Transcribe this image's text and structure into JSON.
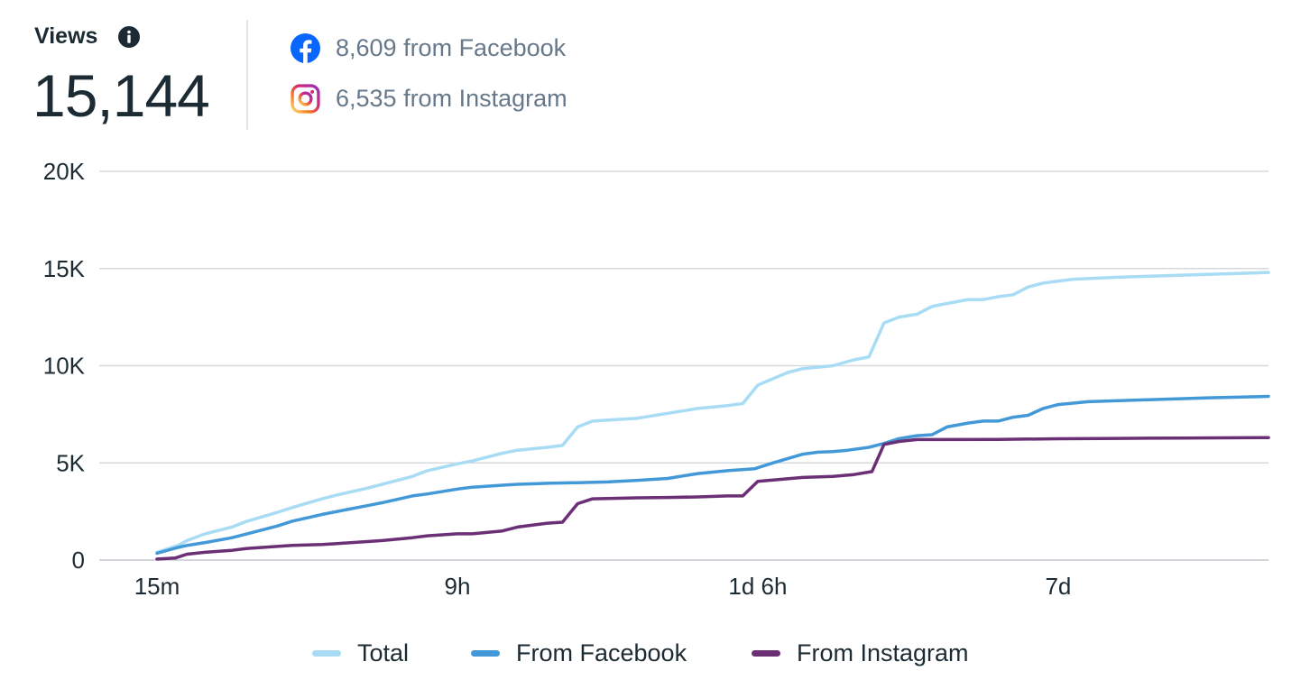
{
  "header": {
    "title": "Views",
    "total": "15,144",
    "sources": [
      {
        "icon": "facebook-logo-icon",
        "text": "8,609 from Facebook",
        "color": "#0866ff"
      },
      {
        "icon": "instagram-logo-icon",
        "text": "6,535 from Instagram",
        "color": "#d62976"
      }
    ]
  },
  "colors": {
    "total": "#a8dcf5",
    "facebook": "#4399d8",
    "instagram": "#6b2f76",
    "grid": "#d5d9de",
    "text": "#1c2b33",
    "muted": "#67788a"
  },
  "chart_data": {
    "type": "line",
    "title": "",
    "xlabel": "",
    "ylabel": "",
    "x_ticks": [
      {
        "label": "15m",
        "x": 0
      },
      {
        "label": "9h",
        "x": 10
      },
      {
        "label": "1d 6h",
        "x": 20
      },
      {
        "label": "7d",
        "x": 30
      }
    ],
    "x_range": [
      0,
      37
    ],
    "y_ticks": [
      {
        "label": "0",
        "value": 0
      },
      {
        "label": "5K",
        "value": 5000
      },
      {
        "label": "10K",
        "value": 10000
      },
      {
        "label": "15K",
        "value": 15000
      },
      {
        "label": "20K",
        "value": 20000
      }
    ],
    "ylim": [
      0,
      20000
    ],
    "grid": true,
    "legend_position": "bottom",
    "series": [
      {
        "name": "Total",
        "color": "#a8dcf5",
        "points": [
          [
            0,
            400
          ],
          [
            0.7,
            750
          ],
          [
            1,
            1000
          ],
          [
            1.6,
            1350
          ],
          [
            2.5,
            1700
          ],
          [
            3,
            2000
          ],
          [
            4,
            2450
          ],
          [
            4.5,
            2700
          ],
          [
            5.5,
            3150
          ],
          [
            6,
            3350
          ],
          [
            7,
            3700
          ],
          [
            7.5,
            3900
          ],
          [
            8.5,
            4300
          ],
          [
            9,
            4600
          ],
          [
            10,
            4950
          ],
          [
            10.5,
            5100
          ],
          [
            11.5,
            5500
          ],
          [
            12,
            5650
          ],
          [
            13,
            5800
          ],
          [
            13.5,
            5900
          ],
          [
            14,
            6850
          ],
          [
            14.5,
            7150
          ],
          [
            16,
            7300
          ],
          [
            17,
            7550
          ],
          [
            18,
            7800
          ],
          [
            19,
            7950
          ],
          [
            19.5,
            8050
          ],
          [
            20,
            9000
          ],
          [
            21,
            9650
          ],
          [
            21.5,
            9850
          ],
          [
            22.5,
            10000
          ],
          [
            23.2,
            10300
          ],
          [
            23.7,
            10450
          ],
          [
            24.2,
            12200
          ],
          [
            24.7,
            12500
          ],
          [
            25.3,
            12650
          ],
          [
            25.8,
            13050
          ],
          [
            26.3,
            13200
          ],
          [
            27,
            13400
          ],
          [
            27.5,
            13400
          ],
          [
            28,
            13550
          ],
          [
            28.5,
            13650
          ],
          [
            29,
            14050
          ],
          [
            29.5,
            14250
          ],
          [
            30.5,
            14450
          ],
          [
            32,
            14550
          ],
          [
            34,
            14650
          ],
          [
            37,
            14800
          ]
        ]
      },
      {
        "name": "From Facebook",
        "color": "#4399d8",
        "points": [
          [
            0,
            350
          ],
          [
            0.7,
            650
          ],
          [
            1,
            750
          ],
          [
            1.6,
            900
          ],
          [
            2.5,
            1150
          ],
          [
            3,
            1350
          ],
          [
            4,
            1750
          ],
          [
            4.5,
            2000
          ],
          [
            5.5,
            2350
          ],
          [
            6,
            2500
          ],
          [
            7,
            2800
          ],
          [
            7.5,
            2950
          ],
          [
            8.5,
            3300
          ],
          [
            9,
            3400
          ],
          [
            10,
            3650
          ],
          [
            10.5,
            3750
          ],
          [
            11.5,
            3850
          ],
          [
            12,
            3900
          ],
          [
            13,
            3950
          ],
          [
            14,
            3980
          ],
          [
            15,
            4020
          ],
          [
            16,
            4100
          ],
          [
            17,
            4200
          ],
          [
            18,
            4450
          ],
          [
            19,
            4600
          ],
          [
            19.9,
            4700
          ],
          [
            20.5,
            5000
          ],
          [
            21.5,
            5450
          ],
          [
            22,
            5550
          ],
          [
            22.5,
            5580
          ],
          [
            23,
            5650
          ],
          [
            23.7,
            5800
          ],
          [
            24.2,
            6000
          ],
          [
            24.7,
            6250
          ],
          [
            25.3,
            6400
          ],
          [
            25.8,
            6450
          ],
          [
            26.3,
            6850
          ],
          [
            27,
            7050
          ],
          [
            27.5,
            7150
          ],
          [
            28,
            7150
          ],
          [
            28.5,
            7350
          ],
          [
            29,
            7450
          ],
          [
            29.5,
            7800
          ],
          [
            30,
            8000
          ],
          [
            31,
            8150
          ],
          [
            33,
            8250
          ],
          [
            35,
            8350
          ],
          [
            37,
            8420
          ]
        ]
      },
      {
        "name": "From Instagram",
        "color": "#6b2f76",
        "points": [
          [
            0,
            50
          ],
          [
            0.6,
            100
          ],
          [
            1,
            300
          ],
          [
            1.6,
            400
          ],
          [
            2.5,
            500
          ],
          [
            3,
            600
          ],
          [
            4,
            700
          ],
          [
            4.5,
            750
          ],
          [
            5.5,
            800
          ],
          [
            6,
            850
          ],
          [
            7,
            950
          ],
          [
            7.5,
            1000
          ],
          [
            8.5,
            1150
          ],
          [
            9,
            1250
          ],
          [
            10,
            1350
          ],
          [
            10.5,
            1350
          ],
          [
            11.5,
            1500
          ],
          [
            12,
            1700
          ],
          [
            13,
            1900
          ],
          [
            13.5,
            1950
          ],
          [
            14,
            2900
          ],
          [
            14.5,
            3150
          ],
          [
            16,
            3200
          ],
          [
            17,
            3220
          ],
          [
            18,
            3250
          ],
          [
            19,
            3300
          ],
          [
            19.5,
            3300
          ],
          [
            20,
            4050
          ],
          [
            21.5,
            4250
          ],
          [
            22.5,
            4300
          ],
          [
            23.2,
            4400
          ],
          [
            23.8,
            4550
          ],
          [
            24.2,
            5950
          ],
          [
            24.7,
            6100
          ],
          [
            25.3,
            6200
          ],
          [
            26,
            6200
          ],
          [
            28,
            6210
          ],
          [
            30,
            6240
          ],
          [
            32,
            6260
          ],
          [
            34,
            6280
          ],
          [
            37,
            6300
          ]
        ]
      }
    ]
  }
}
